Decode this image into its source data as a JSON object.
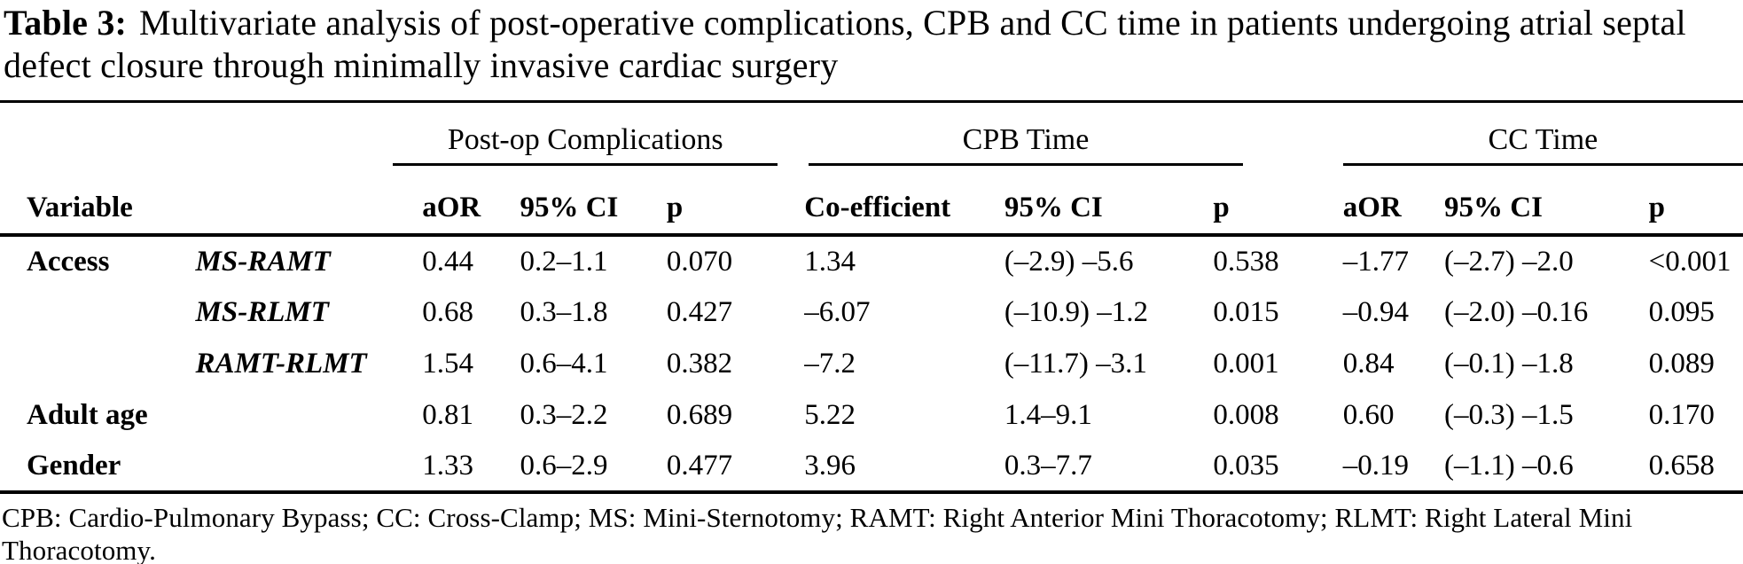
{
  "title": {
    "label": "Table 3:",
    "text": "Multivariate analysis of post-operative complications, CPB and CC time in patients undergoing atrial septal defect closure through minimally invasive cardiac surgery"
  },
  "table": {
    "groups": [
      {
        "label": "Post-op Complications"
      },
      {
        "label": "CPB Time"
      },
      {
        "label": "CC Time"
      }
    ],
    "columns": [
      "Variable",
      "",
      "aOR",
      "95% CI",
      "p",
      "Co-efficient",
      "95% CI",
      "p",
      "aOR",
      "95% CI",
      "p"
    ],
    "rows": [
      {
        "variable": "Access",
        "sub": "MS-RAMT",
        "values": [
          "0.44",
          "0.2–1.1",
          "0.070",
          "1.34",
          "(–2.9) –5.6",
          "0.538",
          "–1.77",
          "(–2.7) –2.0",
          "<0.001"
        ]
      },
      {
        "variable": "",
        "sub": "MS-RLMT",
        "values": [
          "0.68",
          "0.3–1.8",
          "0.427",
          "–6.07",
          "(–10.9) –1.2",
          "0.015",
          "–0.94",
          "(–2.0) –0.16",
          "0.095"
        ]
      },
      {
        "variable": "",
        "sub": "RAMT-RLMT",
        "values": [
          "1.54",
          "0.6–4.1",
          "0.382",
          "–7.2",
          "(–11.7) –3.1",
          "0.001",
          "0.84",
          "(–0.1) –1.8",
          "0.089"
        ]
      },
      {
        "variable": "Adult age",
        "sub": "",
        "values": [
          "0.81",
          "0.3–2.2",
          "0.689",
          "5.22",
          "1.4–9.1",
          "0.008",
          "0.60",
          "(–0.3) –1.5",
          "0.170"
        ]
      },
      {
        "variable": "Gender",
        "sub": "",
        "values": [
          "1.33",
          "0.6–2.9",
          "0.477",
          "3.96",
          "0.3–7.7",
          "0.035",
          "–0.19",
          "(–1.1) –0.6",
          "0.658"
        ]
      }
    ]
  },
  "footnote": "CPB: Cardio-Pulmonary Bypass; CC: Cross-Clamp; MS: Mini-Sternotomy; RAMT: Right Anterior Mini Thoracotomy; RLMT: Right Lateral Mini Thoracotomy.",
  "colors": {
    "text": "#000000",
    "background": "#ffffff",
    "rule": "#000000"
  }
}
